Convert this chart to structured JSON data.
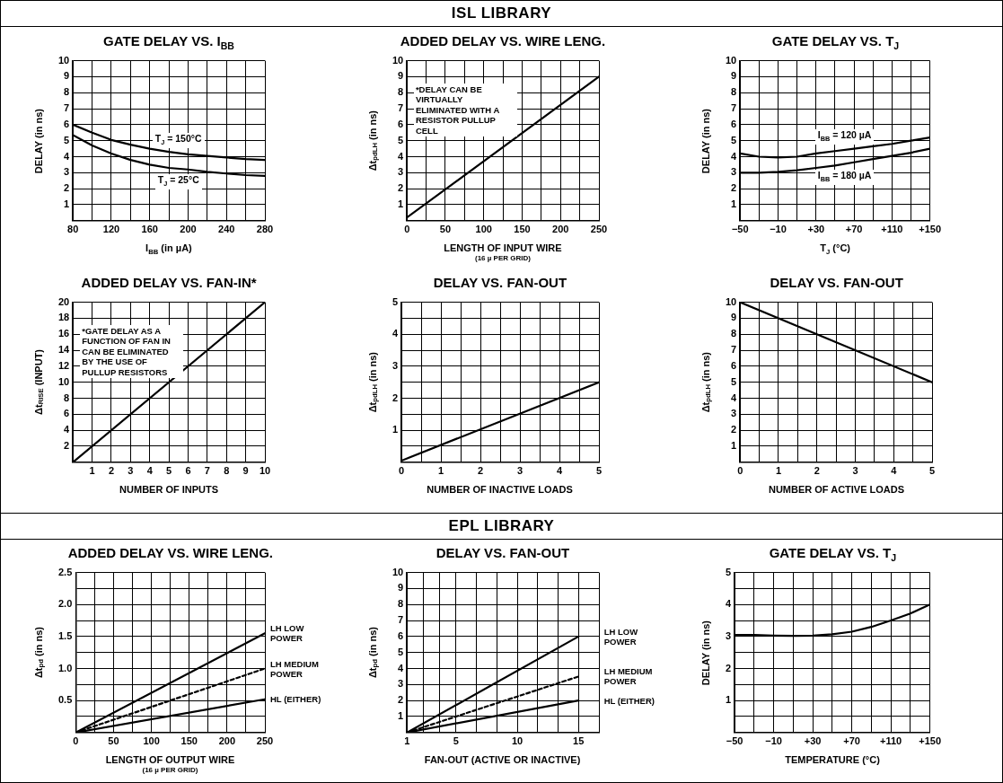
{
  "chart_data": [
    {
      "type": "other",
      "title": "ISL LIBRARY"
    },
    {
      "type": "line",
      "title": "GATE DELAY VS. I$_{BB}$",
      "xlabel": "I$_{BB}$ (in µA)",
      "ylabel": "DELAY (in ns)",
      "x": [
        80,
        100,
        120,
        140,
        160,
        180,
        200,
        220,
        240,
        260,
        280
      ],
      "series": [
        {
          "name": "T$_{J}$ = 150°C",
          "color": "#000000",
          "values": [
            6.0,
            5.5,
            5.05,
            4.75,
            4.5,
            4.3,
            4.15,
            4.05,
            3.95,
            3.85,
            3.8
          ]
        },
        {
          "name": "T$_{J}$ = 25°C",
          "color": "#000000",
          "values": [
            5.35,
            4.7,
            4.2,
            3.8,
            3.5,
            3.3,
            3.2,
            3.05,
            2.95,
            2.85,
            2.8
          ]
        }
      ],
      "xlim": [
        80,
        280
      ],
      "ylim": [
        0,
        10
      ],
      "xticks": [
        80,
        {
          "value": 100,
          "label": null
        },
        120,
        {
          "value": 140,
          "label": null
        },
        160,
        {
          "value": 180,
          "label": null
        },
        200,
        {
          "value": 220,
          "label": null
        },
        240,
        {
          "value": 260,
          "label": null
        },
        280
      ],
      "yticks": [
        {
          "value": 0,
          "label": null
        },
        1,
        2,
        3,
        4,
        5,
        6,
        7,
        8,
        9,
        10
      ],
      "grid": true
    },
    {
      "type": "line",
      "title": "ADDED DELAY VS. WIRE LENG.",
      "xlabel": "LENGTH OF INPUT WIRE\n(16 µ PER GRID)",
      "ylabel": "Δt$_{pdLH}$ (in ns)",
      "x": [
        0,
        250
      ],
      "values": [
        0.2,
        9
      ],
      "color": "#000000",
      "xlim": [
        0,
        250
      ],
      "ylim": [
        0,
        10
      ],
      "xticks": [
        0,
        {
          "value": 25,
          "label": null
        },
        50,
        {
          "value": 75,
          "label": null
        },
        100,
        {
          "value": 125,
          "label": null
        },
        150,
        {
          "value": 175,
          "label": null
        },
        200,
        {
          "value": 225,
          "label": null
        },
        250
      ],
      "yticks": [
        {
          "value": 0,
          "label": null
        },
        1,
        2,
        3,
        4,
        5,
        6,
        7,
        8,
        9,
        10
      ],
      "grid": true,
      "annotations": [
        "*DELAY CAN BE VIRTUALLY ELIMINATED WITH A RESISTOR PULLUP CELL"
      ]
    },
    {
      "type": "line",
      "title": "GATE DELAY VS. T$_{J}$",
      "xlabel": "T$_{J}$ (°C)",
      "ylabel": "DELAY (in ns)",
      "x": [
        -50,
        -30,
        -10,
        10,
        30,
        50,
        70,
        90,
        110,
        130,
        150
      ],
      "series": [
        {
          "name": "I$_{BB}$ = 120 µA",
          "color": "#000000",
          "values": [
            4.2,
            4.0,
            3.95,
            4.0,
            4.2,
            4.35,
            4.5,
            4.65,
            4.8,
            5.0,
            5.2
          ]
        },
        {
          "name": "I$_{BB}$ = 180 µA",
          "color": "#000000",
          "values": [
            3.0,
            3.0,
            3.05,
            3.15,
            3.3,
            3.45,
            3.65,
            3.85,
            4.05,
            4.25,
            4.5
          ]
        }
      ],
      "xlim": [
        -50,
        150
      ],
      "ylim": [
        0,
        10
      ],
      "xticks": [
        {
          "value": -50,
          "label": "−50"
        },
        {
          "value": -30,
          "label": null
        },
        {
          "value": -10,
          "label": "−10"
        },
        {
          "value": 10,
          "label": null
        },
        {
          "value": 30,
          "label": "+30"
        },
        {
          "value": 50,
          "label": null
        },
        {
          "value": 70,
          "label": "+70"
        },
        {
          "value": 90,
          "label": null
        },
        {
          "value": 110,
          "label": "+110"
        },
        {
          "value": 130,
          "label": null
        },
        {
          "value": 150,
          "label": "+150"
        }
      ],
      "yticks": [
        {
          "value": 0,
          "label": null
        },
        1,
        2,
        3,
        4,
        5,
        6,
        7,
        8,
        9,
        10
      ],
      "grid": true
    },
    {
      "type": "line",
      "title": "ADDED DELAY VS. FAN-IN*",
      "xlabel": "NUMBER OF INPUTS",
      "ylabel": "Δt$_{RISE}$ (INPUT)",
      "x": [
        0,
        10
      ],
      "values": [
        0,
        20
      ],
      "color": "#000000",
      "xlim": [
        0,
        10
      ],
      "ylim": [
        0,
        20
      ],
      "xticks": [
        {
          "value": 0,
          "label": null
        },
        1,
        2,
        3,
        4,
        5,
        6,
        7,
        8,
        9,
        10
      ],
      "yticks": [
        {
          "value": 0,
          "label": null
        },
        2,
        4,
        6,
        8,
        10,
        12,
        14,
        16,
        18,
        20
      ],
      "grid": true,
      "annotations": [
        "*GATE DELAY AS A FUNCTION OF FAN IN CAN BE ELIMINATED BY THE USE OF PULLUP RESISTORS"
      ]
    },
    {
      "type": "line",
      "title": "DELAY VS. FAN-OUT",
      "xlabel": "NUMBER OF INACTIVE LOADS",
      "ylabel": "Δt$_{pdLH}$ (in ns)",
      "x": [
        0,
        5
      ],
      "values": [
        0.05,
        2.5
      ],
      "color": "#000000",
      "xlim": [
        0,
        5
      ],
      "ylim": [
        0,
        5
      ],
      "xticks": [
        0,
        {
          "value": 0.5,
          "label": null
        },
        1,
        {
          "value": 1.5,
          "label": null
        },
        2,
        {
          "value": 2.5,
          "label": null
        },
        3,
        {
          "value": 3.5,
          "label": null
        },
        4,
        {
          "value": 4.5,
          "label": null
        },
        5
      ],
      "yticks": [
        {
          "value": 0,
          "label": null
        },
        {
          "value": 0.5,
          "label": null
        },
        1,
        {
          "value": 1.5,
          "label": null
        },
        2,
        {
          "value": 2.5,
          "label": null
        },
        3,
        {
          "value": 3.5,
          "label": null
        },
        4,
        {
          "value": 4.5,
          "label": null
        },
        5
      ],
      "grid": true
    },
    {
      "type": "line",
      "title": "DELAY VS. FAN-OUT",
      "xlabel": "NUMBER OF ACTIVE LOADS",
      "ylabel": "Δt$_{pdLH}$ (in ns)",
      "x": [
        0,
        5
      ],
      "values": [
        10,
        5
      ],
      "color": "#000000",
      "xlim": [
        0,
        5
      ],
      "ylim": [
        0,
        10
      ],
      "xticks": [
        0,
        {
          "value": 0.5,
          "label": null
        },
        1,
        {
          "value": 1.5,
          "label": null
        },
        2,
        {
          "value": 2.5,
          "label": null
        },
        3,
        {
          "value": 3.5,
          "label": null
        },
        4,
        {
          "value": 4.5,
          "label": null
        },
        5
      ],
      "yticks": [
        {
          "value": 0,
          "label": null
        },
        1,
        2,
        3,
        4,
        5,
        6,
        7,
        8,
        9,
        10
      ],
      "grid": true
    },
    {
      "type": "other",
      "title": "EPL LIBRARY"
    },
    {
      "type": "line",
      "title": "ADDED DELAY VS. WIRE LENG.",
      "xlabel": "LENGTH OF OUTPUT WIRE\n(16 µ PER GRID)",
      "ylabel": "Δt$_{pd}$ (in ns)",
      "x": [
        0,
        250
      ],
      "series": [
        {
          "name": "LH LOW POWER",
          "color": "#000000",
          "values": [
            0,
            1.55
          ]
        },
        {
          "name": "LH MEDIUM POWER",
          "color": "#000000",
          "line_style": "dashed",
          "values": [
            0,
            1.0
          ]
        },
        {
          "name": "HL (EITHER)",
          "color": "#000000",
          "values": [
            0,
            0.52
          ]
        }
      ],
      "xlim": [
        0,
        250
      ],
      "ylim": [
        0,
        2.5
      ],
      "xticks": [
        0,
        {
          "value": 25,
          "label": null
        },
        50,
        {
          "value": 75,
          "label": null
        },
        100,
        {
          "value": 125,
          "label": null
        },
        150,
        {
          "value": 175,
          "label": null
        },
        200,
        {
          "value": 225,
          "label": null
        },
        250
      ],
      "yticks": [
        {
          "value": 0,
          "label": null
        },
        {
          "value": 0.25,
          "label": null
        },
        {
          "value": 0.5,
          "label": "0.5"
        },
        {
          "value": 0.75,
          "label": null
        },
        {
          "value": 1,
          "label": "1.0"
        },
        {
          "value": 1.25,
          "label": null
        },
        {
          "value": 1.5,
          "label": "1.5"
        },
        {
          "value": 1.75,
          "label": null
        },
        {
          "value": 2,
          "label": "2.0"
        },
        {
          "value": 2.25,
          "label": null
        },
        {
          "value": 2.5,
          "label": "2.5"
        }
      ],
      "grid": true
    },
    {
      "type": "line",
      "title": "DELAY VS. FAN-OUT",
      "xlabel": "FAN-OUT (ACTIVE OR INACTIVE)",
      "ylabel": "Δt$_{pd}$ (in ns)",
      "x": [
        1,
        15
      ],
      "series": [
        {
          "name": "LH LOW POWER",
          "color": "#000000",
          "values": [
            0,
            6
          ]
        },
        {
          "name": "LH MEDIUM POWER",
          "color": "#000000",
          "line_style": "dashed",
          "values": [
            0,
            3.5
          ]
        },
        {
          "name": "HL (EITHER)",
          "color": "#000000",
          "values": [
            0,
            2
          ]
        }
      ],
      "xlim": [
        1,
        16.67
      ],
      "ylim": [
        0,
        10
      ],
      "xticks": [
        1,
        {
          "value": 2.33,
          "label": null
        },
        {
          "value": 3.67,
          "label": null
        },
        5,
        {
          "value": 6.67,
          "label": null
        },
        {
          "value": 8.33,
          "label": null
        },
        10,
        {
          "value": 11.67,
          "label": null
        },
        {
          "value": 13.33,
          "label": null
        },
        15,
        {
          "value": 16.67,
          "label": null
        }
      ],
      "yticks": [
        {
          "value": 0,
          "label": null
        },
        1,
        2,
        3,
        4,
        5,
        6,
        7,
        8,
        9,
        10
      ],
      "grid": true
    },
    {
      "type": "line",
      "title": "GATE DELAY VS. T$_{J}$",
      "xlabel": "TEMPERATURE (°C)",
      "ylabel": "DELAY (in ns)",
      "x": [
        -50,
        -30,
        -10,
        10,
        30,
        50,
        70,
        90,
        110,
        130,
        150
      ],
      "values": [
        3.05,
        3.05,
        3.03,
        3.02,
        3.03,
        3.07,
        3.15,
        3.3,
        3.5,
        3.72,
        4.0
      ],
      "color": "#000000",
      "xlim": [
        -50,
        150
      ],
      "ylim": [
        0,
        5
      ],
      "xticks": [
        {
          "value": -50,
          "label": "−50"
        },
        {
          "value": -30,
          "label": null
        },
        {
          "value": -10,
          "label": "−10"
        },
        {
          "value": 10,
          "label": null
        },
        {
          "value": 30,
          "label": "+30"
        },
        {
          "value": 50,
          "label": null
        },
        {
          "value": 70,
          "label": "+70"
        },
        {
          "value": 90,
          "label": null
        },
        {
          "value": 110,
          "label": "+110"
        },
        {
          "value": 130,
          "label": null
        },
        {
          "value": 150,
          "label": "+150"
        }
      ],
      "yticks": [
        {
          "value": 0,
          "label": null
        },
        {
          "value": 0.5,
          "label": null
        },
        1,
        {
          "value": 1.5,
          "label": null
        },
        2,
        {
          "value": 2.5,
          "label": null
        },
        3,
        {
          "value": 3.5,
          "label": null
        },
        4,
        {
          "value": 4.5,
          "label": null
        },
        5
      ],
      "grid": true
    }
  ]
}
